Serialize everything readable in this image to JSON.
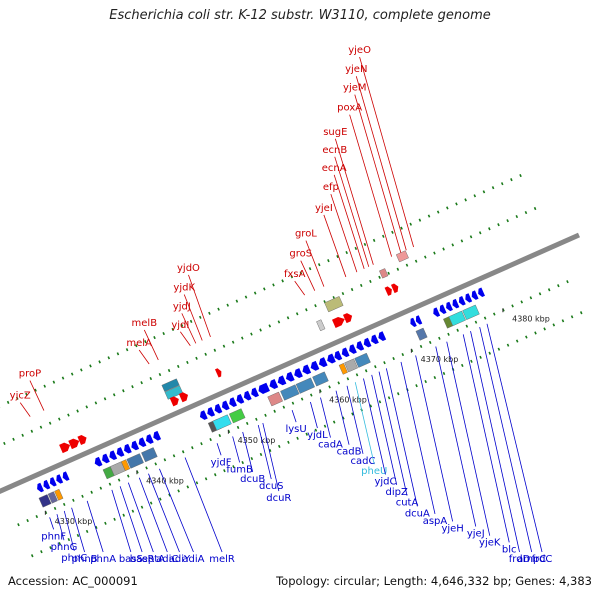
{
  "title": "Escherichia coli str. K-12 substr. W3110, complete genome",
  "accession": "Accession: AC_000091",
  "summary": "Topology: circular; Length: 4,646,332 bp; Genes: 4,383",
  "colors": {
    "forward_label": "#cc0000",
    "reverse_label": "#0000cc",
    "highlight_label": "#33bbdd",
    "forward_arrow": "#ee0000",
    "reverse_arrow": "#0000ee",
    "axis": "#888888",
    "dots": "#1a7a1a"
  },
  "ticks": [
    {
      "label": "4330 kbp",
      "kb": 4330
    },
    {
      "label": "4340 kbp",
      "kb": 4340
    },
    {
      "label": "4350 kbp",
      "kb": 4350
    },
    {
      "label": "4360 kbp",
      "kb": 4360
    },
    {
      "label": "4370 kbp",
      "kb": 4370
    },
    {
      "label": "4380 kbp",
      "kb": 4380
    }
  ],
  "forward_genes": [
    {
      "name": "yjcZ",
      "kb": 4332.5
    },
    {
      "name": "proP",
      "kb": 4334.0
    },
    {
      "name": "melA",
      "kb": 4345.5
    },
    {
      "name": "melB",
      "kb": 4346.5
    },
    {
      "name": "yjdI",
      "kb": 4350.0
    },
    {
      "name": "yjdJ",
      "kb": 4350.6
    },
    {
      "name": "yjdK",
      "kb": 4351.3
    },
    {
      "name": "yjdO",
      "kb": 4352.2
    },
    {
      "name": "fxsA",
      "kb": 4362.5
    },
    {
      "name": "groS",
      "kb": 4363.6
    },
    {
      "name": "groL",
      "kb": 4364.6
    },
    {
      "name": "yjeI",
      "kb": 4367.0
    },
    {
      "name": "efp",
      "kb": 4368.2
    },
    {
      "name": "ecnA",
      "kb": 4369.0
    },
    {
      "name": "ecnB",
      "kb": 4369.5
    },
    {
      "name": "sugE",
      "kb": 4370.0
    },
    {
      "name": "poxA",
      "kb": 4372.0
    },
    {
      "name": "yjeM",
      "kb": 4373.0
    },
    {
      "name": "yjeN",
      "kb": 4373.6
    },
    {
      "name": "yjeO",
      "kb": 4374.4
    }
  ],
  "reverse_genes": [
    {
      "name": "phnF",
      "kb": 4330.2
    },
    {
      "name": "phnG",
      "kb": 4331.0
    },
    {
      "name": "phnC",
      "kb": 4331.8
    },
    {
      "name": "phnB",
      "kb": 4332.6
    },
    {
      "name": "phnA",
      "kb": 4334.3
    },
    {
      "name": "basS",
      "kb": 4337.0
    },
    {
      "name": "basR",
      "kb": 4337.9
    },
    {
      "name": "eptA",
      "kb": 4338.8
    },
    {
      "name": "adiC",
      "kb": 4340.0
    },
    {
      "name": "adiY",
      "kb": 4341.0
    },
    {
      "name": "adiA",
      "kb": 4342.2
    },
    {
      "name": "melR",
      "kb": 4345.0
    },
    {
      "name": "yjdF",
      "kb": 4348.5
    },
    {
      "name": "fumB",
      "kb": 4350.2
    },
    {
      "name": "dcuB",
      "kb": 4351.3
    },
    {
      "name": "dcuS",
      "kb": 4353.0
    },
    {
      "name": "dcuR",
      "kb": 4353.5
    },
    {
      "name": "lysU",
      "kb": 4356.7
    },
    {
      "name": "yjdL",
      "kb": 4358.7
    },
    {
      "name": "cadA",
      "kb": 4359.8
    },
    {
      "name": "cadB",
      "kb": 4361.5
    },
    {
      "name": "cadC",
      "kb": 4362.7
    },
    {
      "name": "pheU",
      "kb": 4363.6,
      "highlight": true
    },
    {
      "name": "yjdC",
      "kb": 4364.5
    },
    {
      "name": "dipZ",
      "kb": 4365.4
    },
    {
      "name": "cutA",
      "kb": 4366.2
    },
    {
      "name": "dcuA",
      "kb": 4367.0
    },
    {
      "name": "aspA",
      "kb": 4368.6
    },
    {
      "name": "yjeH",
      "kb": 4370.2
    },
    {
      "name": "yjeJ",
      "kb": 4372.4
    },
    {
      "name": "yjeK",
      "kb": 4373.6
    },
    {
      "name": "blc",
      "kb": 4375.4
    },
    {
      "name": "frdD",
      "kb": 4376.2
    },
    {
      "name": "ampC",
      "kb": 4377.2
    },
    {
      "name": "frdC",
      "kb": 4378.0
    }
  ]
}
